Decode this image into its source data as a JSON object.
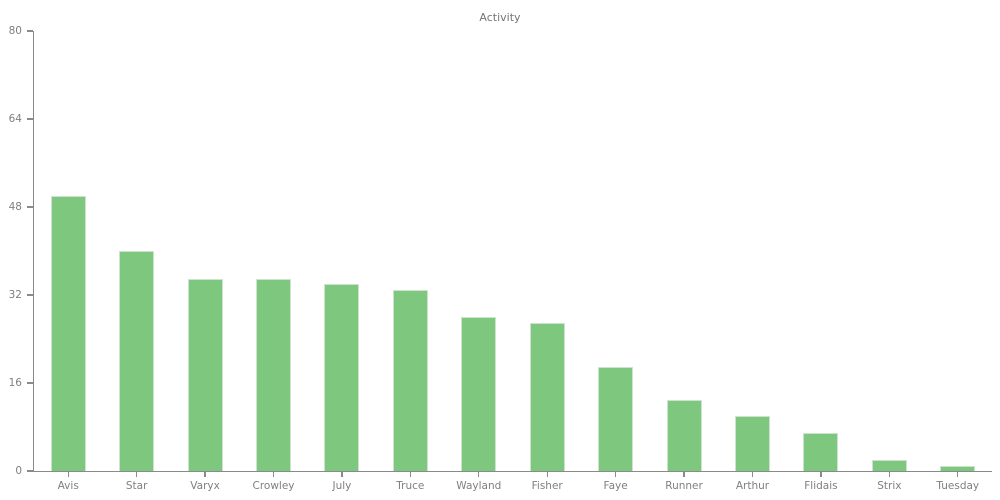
{
  "chart_data": {
    "type": "bar",
    "title": "Activity",
    "categories": [
      "Avis",
      "Star",
      "Varyx",
      "Crowley",
      "July",
      "Truce",
      "Wayland",
      "Fisher",
      "Faye",
      "Runner",
      "Arthur",
      "Flidais",
      "Strix",
      "Tuesday"
    ],
    "values": [
      50,
      40,
      35,
      35,
      34,
      33,
      28,
      27,
      19,
      13,
      10,
      7,
      2,
      1
    ],
    "xlabel": "",
    "ylabel": "",
    "ylim": [
      0,
      80
    ],
    "yticks": [
      0,
      16,
      32,
      48,
      64,
      80
    ],
    "grid": false,
    "legend": "none",
    "colors": {
      "bar_fill": "#7dc87e",
      "axis": "#8a8a8a",
      "tick_labels": "#7f7f7f",
      "title": "#757575",
      "background": "#ffffff"
    }
  }
}
